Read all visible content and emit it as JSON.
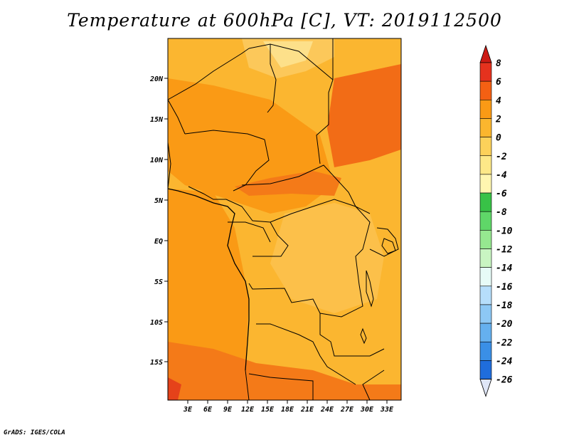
{
  "title": "Temperature at 600hPa [C], VT: 2019112500",
  "lat_labels": [
    "20N",
    "15N",
    "10N",
    "5N",
    "EQ",
    "5S",
    "10S",
    "15S"
  ],
  "lon_labels": [
    "3E",
    "6E",
    "9E",
    "12E",
    "15E",
    "18E",
    "21E",
    "24E",
    "27E",
    "30E",
    "33E"
  ],
  "colorbar": {
    "labels": [
      "8",
      "6",
      "4",
      "2",
      "0",
      "-2",
      "-4",
      "-6",
      "-8",
      "-10",
      "-12",
      "-14",
      "-16",
      "-18",
      "-20",
      "-22",
      "-24",
      "-26"
    ],
    "colors": [
      "#e5321e",
      "#f46013",
      "#fa9a15",
      "#fbb62e",
      "#fcd15a",
      "#fde888",
      "#fff6b0",
      "#38c247",
      "#5fd768",
      "#96e890",
      "#c9f5c2",
      "#e7fbf7",
      "#b6defb",
      "#8dc8f5",
      "#65b0ef",
      "#3a8fe6",
      "#1f6ddc",
      "#1546c2",
      "#0c2a9c",
      "#05106a"
    ],
    "top_arrow_color": "#cc1b14",
    "bottom_arrow_color": "#dfe6f7"
  },
  "credit": "GrADS: IGES/COLA"
}
